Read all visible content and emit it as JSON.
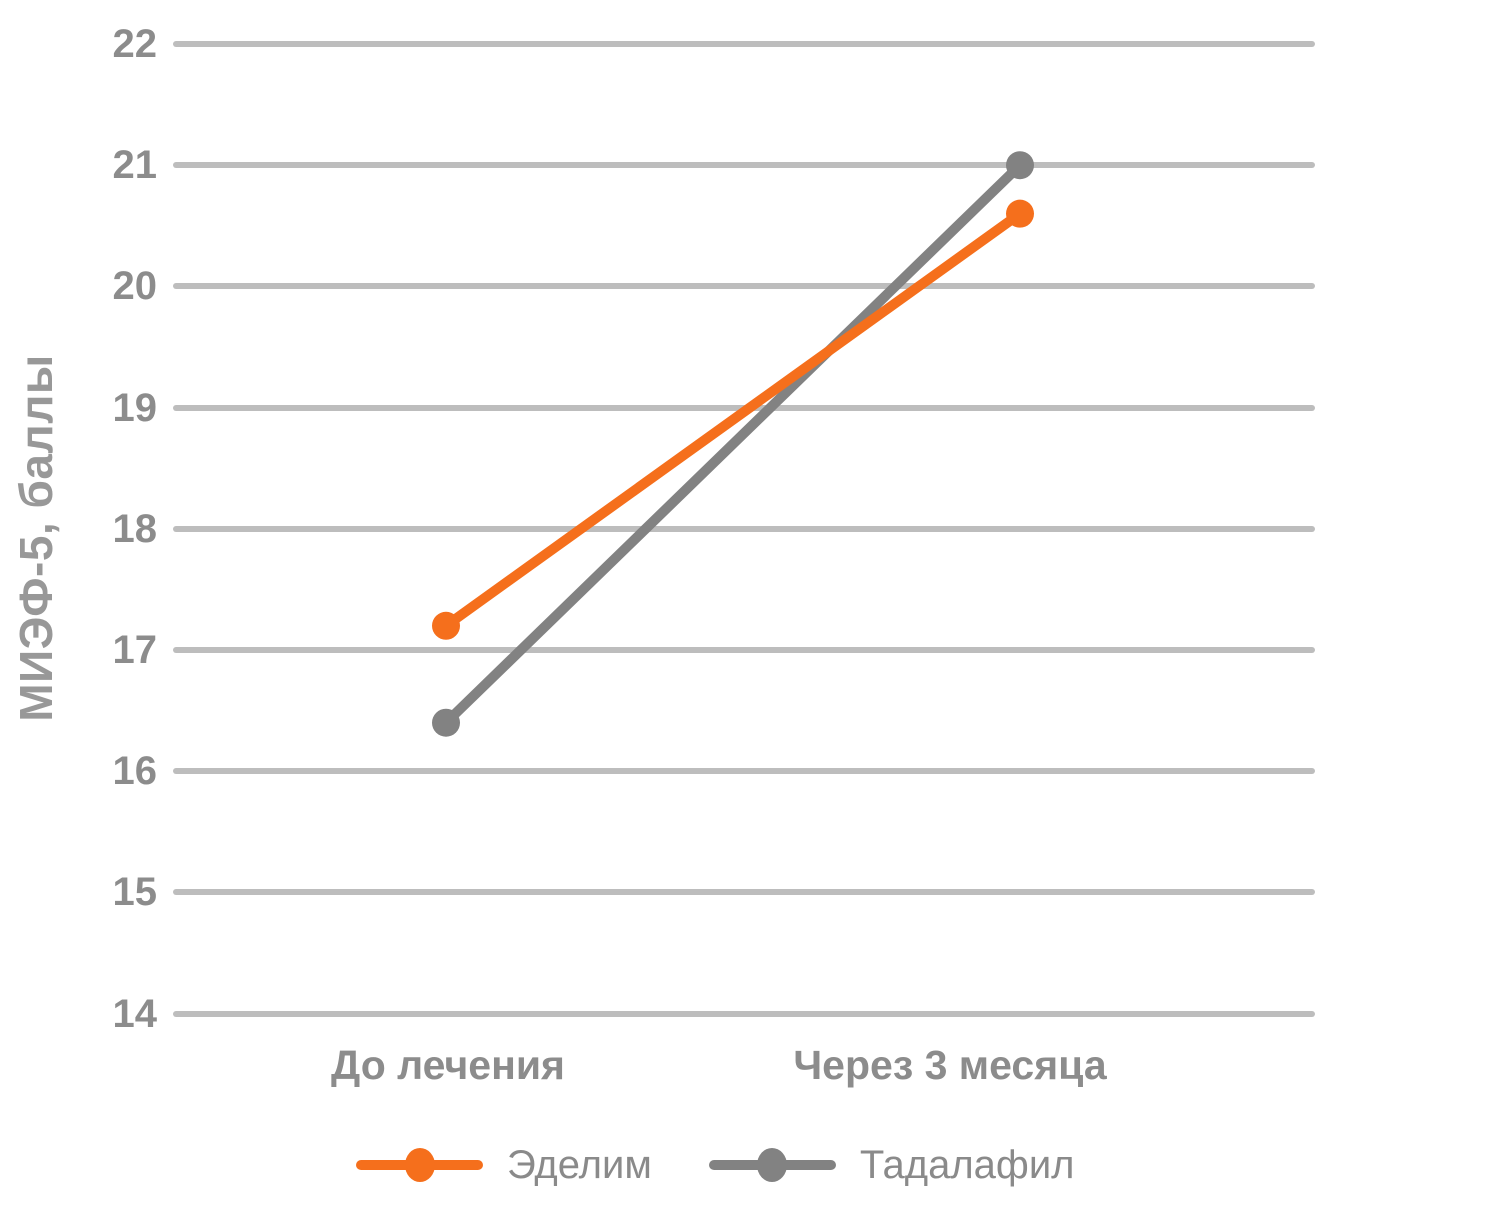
{
  "chart_data": {
    "type": "line",
    "title": "",
    "categories": [
      "До лечения",
      "Через 3 месяца"
    ],
    "series": [
      {
        "name": "Эделим",
        "values": [
          17.2,
          20.6
        ],
        "color": "#F56F1C"
      },
      {
        "name": "Тадалафил",
        "values": [
          16.4,
          21.0
        ],
        "color": "#828282"
      }
    ],
    "ylabel": "МИЭФ-5, баллы",
    "xlabel": "",
    "yticks": [
      22,
      21,
      20,
      19,
      18,
      17,
      16,
      15,
      14
    ],
    "ylim": [
      14,
      22
    ],
    "grid": "horizontal",
    "legend_position": "bottom"
  },
  "colors": {
    "background": "#ffffff",
    "gridline": "#bdbdbd",
    "tick_label": "#8c8c8c",
    "axis_title": "#989898",
    "x_label": "#8c8c8c",
    "legend_text": "#8a8a8a"
  }
}
